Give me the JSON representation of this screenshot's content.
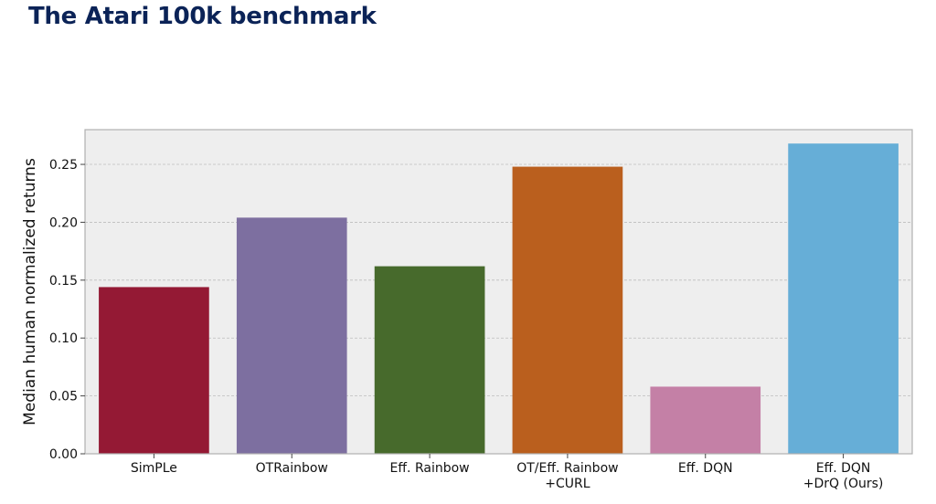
{
  "title": "The Atari 100k benchmark",
  "chart_data": {
    "type": "bar",
    "title": "",
    "xlabel": "",
    "ylabel": "Median human normalized returns",
    "ylim": [
      0,
      0.28
    ],
    "yticks": [
      "0.00",
      "0.05",
      "0.10",
      "0.15",
      "0.20",
      "0.25"
    ],
    "grid": true,
    "categories": [
      [
        "SimPLe"
      ],
      [
        "OTRainbow"
      ],
      [
        "Eff. Rainbow"
      ],
      [
        "OT/Eff. Rainbow",
        "+CURL"
      ],
      [
        "Eff. DQN"
      ],
      [
        "Eff. DQN",
        "+DrQ (Ours)"
      ]
    ],
    "values": [
      0.144,
      0.204,
      0.162,
      0.248,
      0.058,
      0.268
    ],
    "colors": [
      "#941934",
      "#7d6fa0",
      "#476a2c",
      "#ba5f1e",
      "#c480a6",
      "#66aed7"
    ],
    "plot_background": "#eeeeee",
    "grid_color": "#bdbdbd"
  }
}
